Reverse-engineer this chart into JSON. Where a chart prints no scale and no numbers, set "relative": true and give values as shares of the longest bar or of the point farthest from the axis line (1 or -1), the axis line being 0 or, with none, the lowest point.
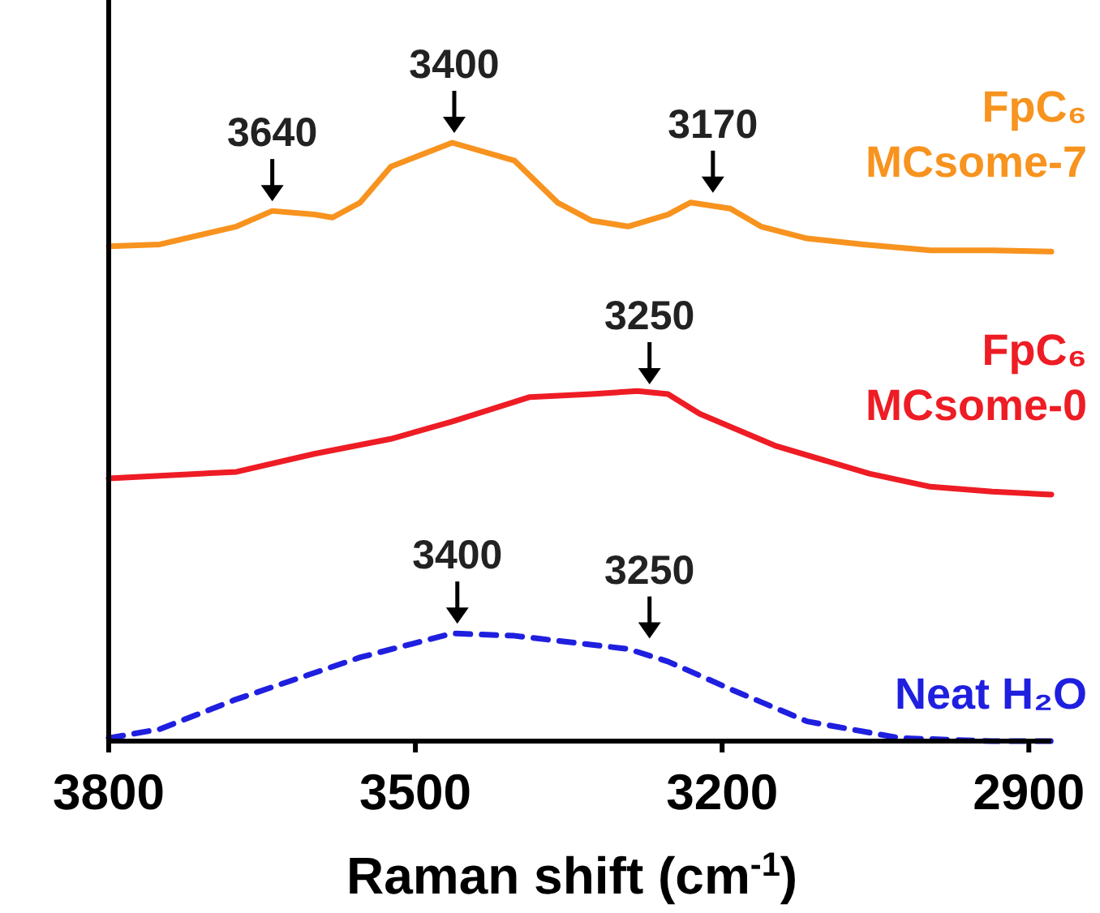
{
  "chart_data": {
    "type": "line",
    "relative": true,
    "xlabel": "Raman shift (cm$^{-1}$)",
    "xlim": [
      3800,
      2878
    ],
    "xticks": [
      3800,
      3500,
      3200,
      2900
    ],
    "tick_labels": "x",
    "series": [
      {
        "name": "FpC₆\nMCsome-7",
        "color": "#f7931e",
        "line_style": "solid",
        "x": [
          3800,
          3750,
          3675,
          3640,
          3599,
          3581,
          3554,
          3524,
          3464,
          3403,
          3361,
          3328,
          3292,
          3253,
          3231,
          3192,
          3162,
          3117,
          3062,
          2996,
          2936,
          2878
        ],
        "values": [
          0.827,
          0.83,
          0.86,
          0.886,
          0.88,
          0.875,
          0.9,
          0.96,
          1.0,
          0.97,
          0.9,
          0.87,
          0.86,
          0.88,
          0.9,
          0.89,
          0.86,
          0.84,
          0.83,
          0.82,
          0.82,
          0.818
        ]
      },
      {
        "name": "FpC₆\nMCsome-0",
        "color": "#ee1c24",
        "line_style": "solid",
        "x": [
          3800,
          3675,
          3599,
          3524,
          3464,
          3388,
          3328,
          3283,
          3253,
          3222,
          3147,
          3056,
          2996,
          2936,
          2878
        ],
        "values": [
          0.439,
          0.45,
          0.48,
          0.505,
          0.534,
          0.575,
          0.58,
          0.585,
          0.58,
          0.547,
          0.493,
          0.447,
          0.425,
          0.417,
          0.412
        ]
      },
      {
        "name": "Neat H₂O",
        "color": "#1f1fe0",
        "line_style": "dashed",
        "x": [
          3800,
          3750,
          3675,
          3554,
          3464,
          3403,
          3292,
          3253,
          3192,
          3117,
          3026,
          2936,
          2878
        ],
        "values": [
          0.005,
          0.02,
          0.07,
          0.14,
          0.18,
          0.176,
          0.154,
          0.133,
          0.087,
          0.033,
          0.005,
          0.0,
          0.0
        ]
      }
    ],
    "annotations": [
      {
        "text": "3640",
        "x": 3640,
        "y": 0.886
      },
      {
        "text": "3400",
        "x": 3462,
        "y": 1.0
      },
      {
        "text": "3170",
        "x": 3209,
        "y": 0.9
      },
      {
        "text": "3250",
        "x": 3271,
        "y": 0.58
      },
      {
        "text": "3400",
        "x": 3459,
        "y": 0.18
      },
      {
        "text": "3250",
        "x": 3271,
        "y": 0.155
      }
    ]
  }
}
